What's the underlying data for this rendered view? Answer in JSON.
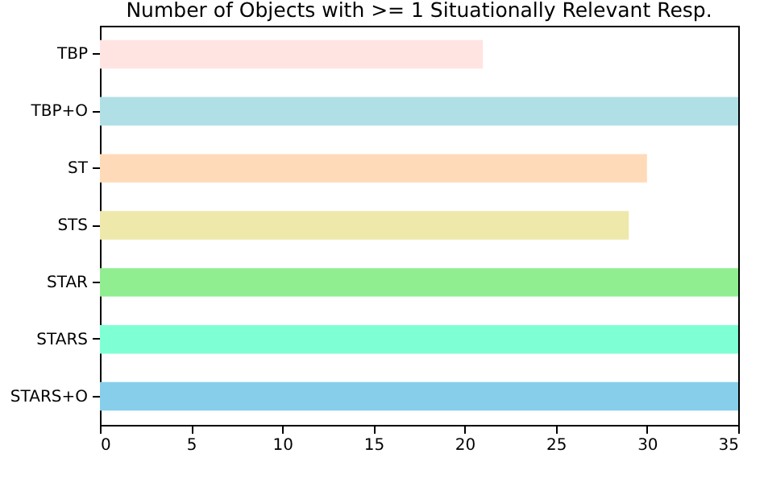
{
  "chart_data": {
    "type": "bar",
    "orientation": "horizontal",
    "title": "Number of Objects with >= 1 Situationally Relevant Resp.",
    "categories": [
      "TBP",
      "TBP+O",
      "ST",
      "STS",
      "STAR",
      "STARS",
      "STARS+O"
    ],
    "values": [
      21,
      35,
      30,
      29,
      35,
      35,
      35
    ],
    "colors": [
      "#ffe4e1",
      "#b0e0e6",
      "#ffdab9",
      "#eee8aa",
      "#90ee90",
      "#7fffd4",
      "#87ceeb"
    ],
    "xlim": [
      0,
      35
    ],
    "xticks": [
      0,
      5,
      10,
      15,
      20,
      25,
      30,
      35
    ],
    "grid": false,
    "legend": false
  }
}
